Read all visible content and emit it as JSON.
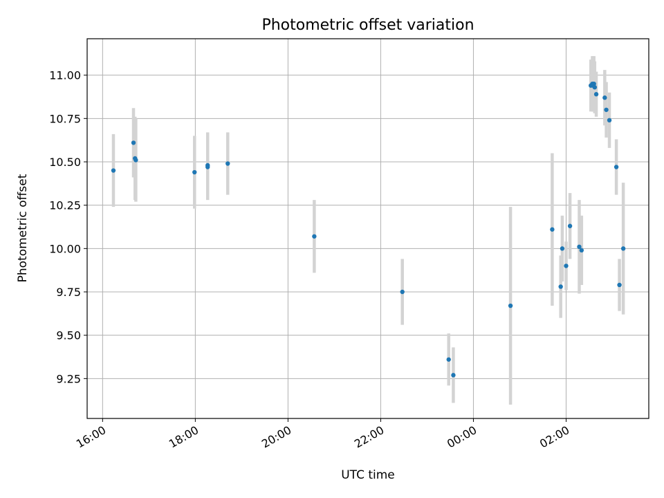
{
  "chart_data": {
    "type": "scatter",
    "title": "Photometric offset variation",
    "xlabel": "UTC time",
    "ylabel": "Photometric offset",
    "x_ticks": [
      {
        "t": 0,
        "label": "16:00"
      },
      {
        "t": 120,
        "label": "18:00"
      },
      {
        "t": 240,
        "label": "20:00"
      },
      {
        "t": 360,
        "label": "22:00"
      },
      {
        "t": 480,
        "label": "00:00"
      },
      {
        "t": 600,
        "label": "02:00"
      }
    ],
    "x_tick_units": "minutes after 16:00 UTC",
    "xlim": [
      -20,
      707
    ],
    "y_ticks": [
      "9.25",
      "9.50",
      "9.75",
      "10.00",
      "10.25",
      "10.50",
      "10.75",
      "11.00"
    ],
    "ylim": [
      9.02,
      11.21
    ],
    "grid": true,
    "colors": {
      "marker": "#1f77b4",
      "errorbar": "#d3d3d3",
      "grid": "#b0b0b0"
    },
    "points": [
      {
        "t": 14,
        "y": 10.45,
        "err": 0.21
      },
      {
        "t": 40,
        "y": 10.61,
        "err": 0.2
      },
      {
        "t": 42,
        "y": 10.52,
        "err": 0.24
      },
      {
        "t": 43,
        "y": 10.51,
        "err": 0.24
      },
      {
        "t": 119,
        "y": 10.44,
        "err": 0.21
      },
      {
        "t": 136,
        "y": 10.48,
        "err": 0.19
      },
      {
        "t": 136,
        "y": 10.47,
        "err": 0.19
      },
      {
        "t": 162,
        "y": 10.49,
        "err": 0.18
      },
      {
        "t": 274,
        "y": 10.07,
        "err": 0.21
      },
      {
        "t": 388,
        "y": 9.75,
        "err": 0.19
      },
      {
        "t": 448,
        "y": 9.36,
        "err": 0.15
      },
      {
        "t": 454,
        "y": 9.27,
        "err": 0.16
      },
      {
        "t": 528,
        "y": 9.67,
        "err": 0.57
      },
      {
        "t": 582,
        "y": 10.11,
        "err": 0.44
      },
      {
        "t": 593,
        "y": 9.78,
        "err": 0.18
      },
      {
        "t": 595,
        "y": 10.0,
        "err": 0.19
      },
      {
        "t": 600,
        "y": 9.9,
        "err": 0.14
      },
      {
        "t": 605,
        "y": 10.13,
        "err": 0.19
      },
      {
        "t": 617,
        "y": 10.01,
        "err": 0.27
      },
      {
        "t": 620,
        "y": 9.99,
        "err": 0.2
      },
      {
        "t": 632,
        "y": 10.94,
        "err": 0.15
      },
      {
        "t": 634,
        "y": 10.95,
        "err": 0.16
      },
      {
        "t": 635,
        "y": 10.94,
        "err": 0.15
      },
      {
        "t": 636,
        "y": 10.95,
        "err": 0.16
      },
      {
        "t": 637,
        "y": 10.93,
        "err": 0.15
      },
      {
        "t": 639,
        "y": 10.89,
        "err": 0.13
      },
      {
        "t": 650,
        "y": 10.87,
        "err": 0.16
      },
      {
        "t": 652,
        "y": 10.8,
        "err": 0.16
      },
      {
        "t": 656,
        "y": 10.74,
        "err": 0.16
      },
      {
        "t": 665,
        "y": 10.47,
        "err": 0.16
      },
      {
        "t": 669,
        "y": 9.79,
        "err": 0.15
      },
      {
        "t": 674,
        "y": 10.0,
        "err": 0.38
      }
    ]
  }
}
